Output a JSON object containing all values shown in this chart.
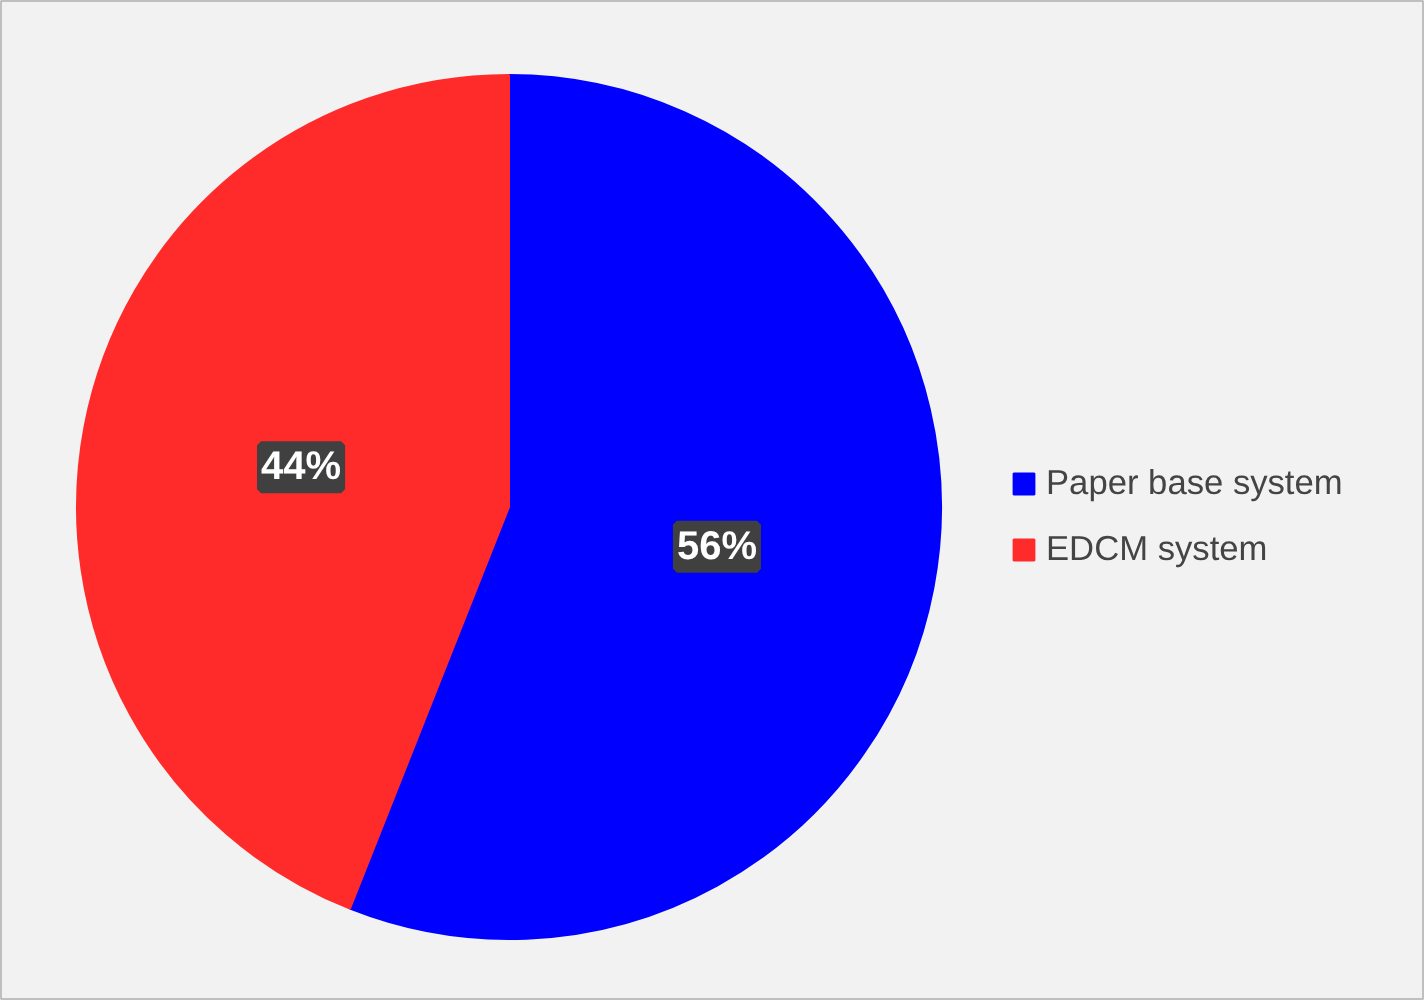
{
  "chart_data": {
    "type": "pie",
    "categories": [
      "Paper base system",
      "EDCM system"
    ],
    "values": [
      56,
      44
    ],
    "colors": [
      "#0000ff",
      "#ff2b2b"
    ],
    "value_labels": [
      "56%",
      "44%"
    ],
    "legend": "right"
  }
}
